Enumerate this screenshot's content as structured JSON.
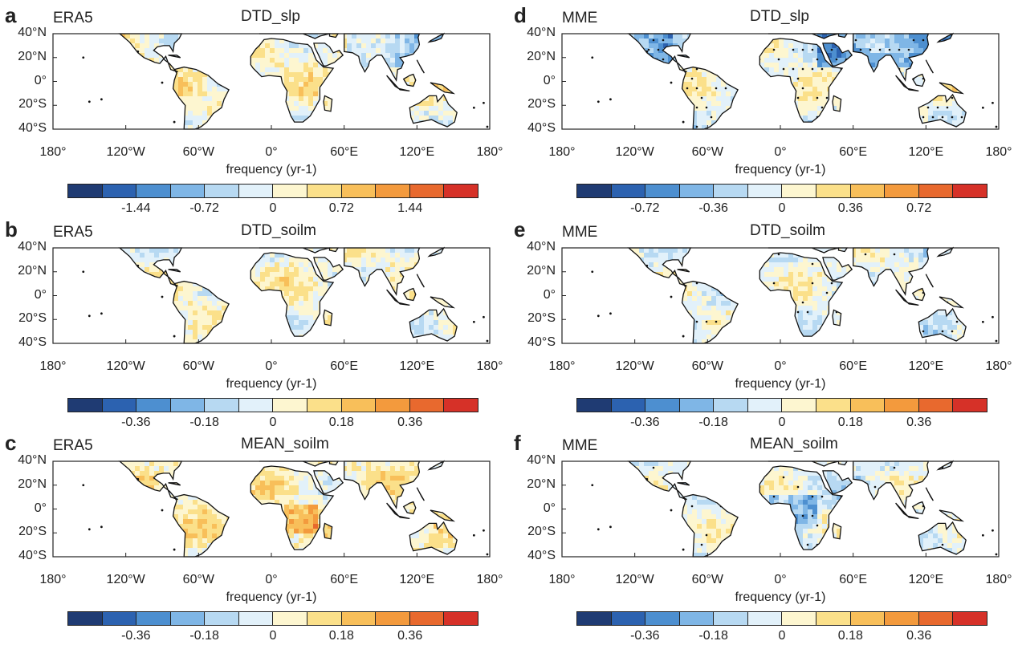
{
  "palette": [
    "#1f3b73",
    "#2c62b0",
    "#4d8fd0",
    "#7fb6e6",
    "#b7d9f2",
    "#e2f1fa",
    "#fdf6d0",
    "#fbe08a",
    "#f8bf5a",
    "#f39a3d",
    "#e8692e",
    "#d63128"
  ],
  "x_ticks": [
    "180°",
    "120°W",
    "60°W",
    "0°",
    "60°E",
    "120°E",
    "180°"
  ],
  "y_ticks": [
    "40°N",
    "20°N",
    "0°",
    "20°S",
    "40°S"
  ],
  "x_label": "frequency (yr-1)",
  "chart_data": [
    {
      "type": "heatmap",
      "panel": "a",
      "source": "ERA5",
      "title": "DTD_slp",
      "xlabel": "frequency (yr-1)",
      "colorbar_labels": [
        "-1.44",
        "-0.72",
        "0",
        "0.72",
        "1.44"
      ],
      "colorbar_range": [
        -2.16,
        2.16
      ],
      "stippled": false
    },
    {
      "type": "heatmap",
      "panel": "b",
      "source": "ERA5",
      "title": "DTD_soilm",
      "xlabel": "frequency (yr-1)",
      "colorbar_labels": [
        "-0.36",
        "-0.18",
        "0",
        "0.18",
        "0.36"
      ],
      "colorbar_range": [
        -0.54,
        0.54
      ],
      "stippled": false
    },
    {
      "type": "heatmap",
      "panel": "c",
      "source": "ERA5",
      "title": "MEAN_soilm",
      "xlabel": "frequency (yr-1)",
      "colorbar_labels": [
        "-0.36",
        "-0.18",
        "0",
        "0.18",
        "0.36"
      ],
      "colorbar_range": [
        -0.54,
        0.54
      ],
      "stippled": false
    },
    {
      "type": "heatmap",
      "panel": "d",
      "source": "MME",
      "title": "DTD_slp",
      "xlabel": "frequency (yr-1)",
      "colorbar_labels": [
        "-0.72",
        "-0.36",
        "0",
        "0.36",
        "0.72"
      ],
      "colorbar_range": [
        -1.08,
        1.08
      ],
      "stippled": true
    },
    {
      "type": "heatmap",
      "panel": "e",
      "source": "MME",
      "title": "DTD_soilm",
      "xlabel": "frequency (yr-1)",
      "colorbar_labels": [
        "-0.36",
        "-0.18",
        "0",
        "0.18",
        "0.36"
      ],
      "colorbar_range": [
        -0.54,
        0.54
      ],
      "stippled": true
    },
    {
      "type": "heatmap",
      "panel": "f",
      "source": "MME",
      "title": "MEAN_soilm",
      "xlabel": "frequency (yr-1)",
      "colorbar_labels": [
        "-0.36",
        "-0.18",
        "0",
        "0.18",
        "0.36"
      ],
      "colorbar_range": [
        -0.54,
        0.54
      ],
      "stippled": true
    }
  ]
}
